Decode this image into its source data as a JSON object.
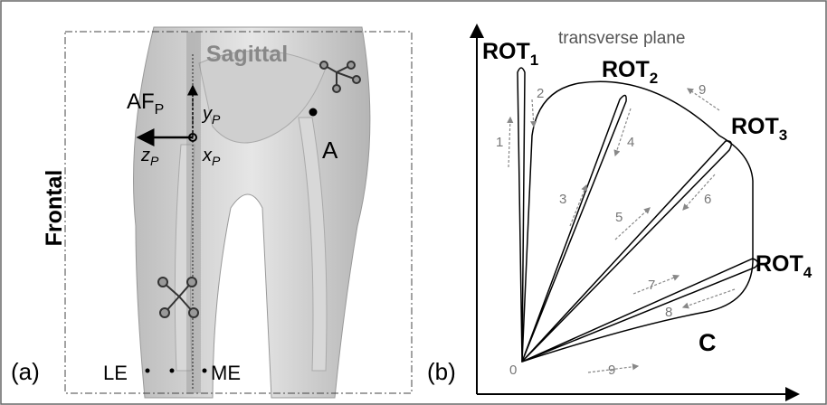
{
  "panel_a": {
    "label": "(a)",
    "sagittal": "Sagittal",
    "frontal": "Frontal",
    "af": {
      "main": "AF",
      "sub": "P"
    },
    "y_axis": {
      "main": "y",
      "sub": "P"
    },
    "z_axis": {
      "main": "z",
      "sub": "P"
    },
    "x_axis": {
      "main": "x",
      "sub": "P"
    },
    "point_a": "A",
    "le": "LE",
    "me": "ME"
  },
  "panel_b": {
    "label": "(b)",
    "plane": "transverse plane",
    "rot": [
      {
        "main": "ROT",
        "sub": "1"
      },
      {
        "main": "ROT",
        "sub": "2"
      },
      {
        "main": "ROT",
        "sub": "3"
      },
      {
        "main": "ROT",
        "sub": "4"
      }
    ],
    "steps": [
      "1",
      "2",
      "3",
      "4",
      "5",
      "6",
      "7",
      "8",
      "9",
      "9"
    ],
    "origin": "0",
    "region": "C"
  }
}
